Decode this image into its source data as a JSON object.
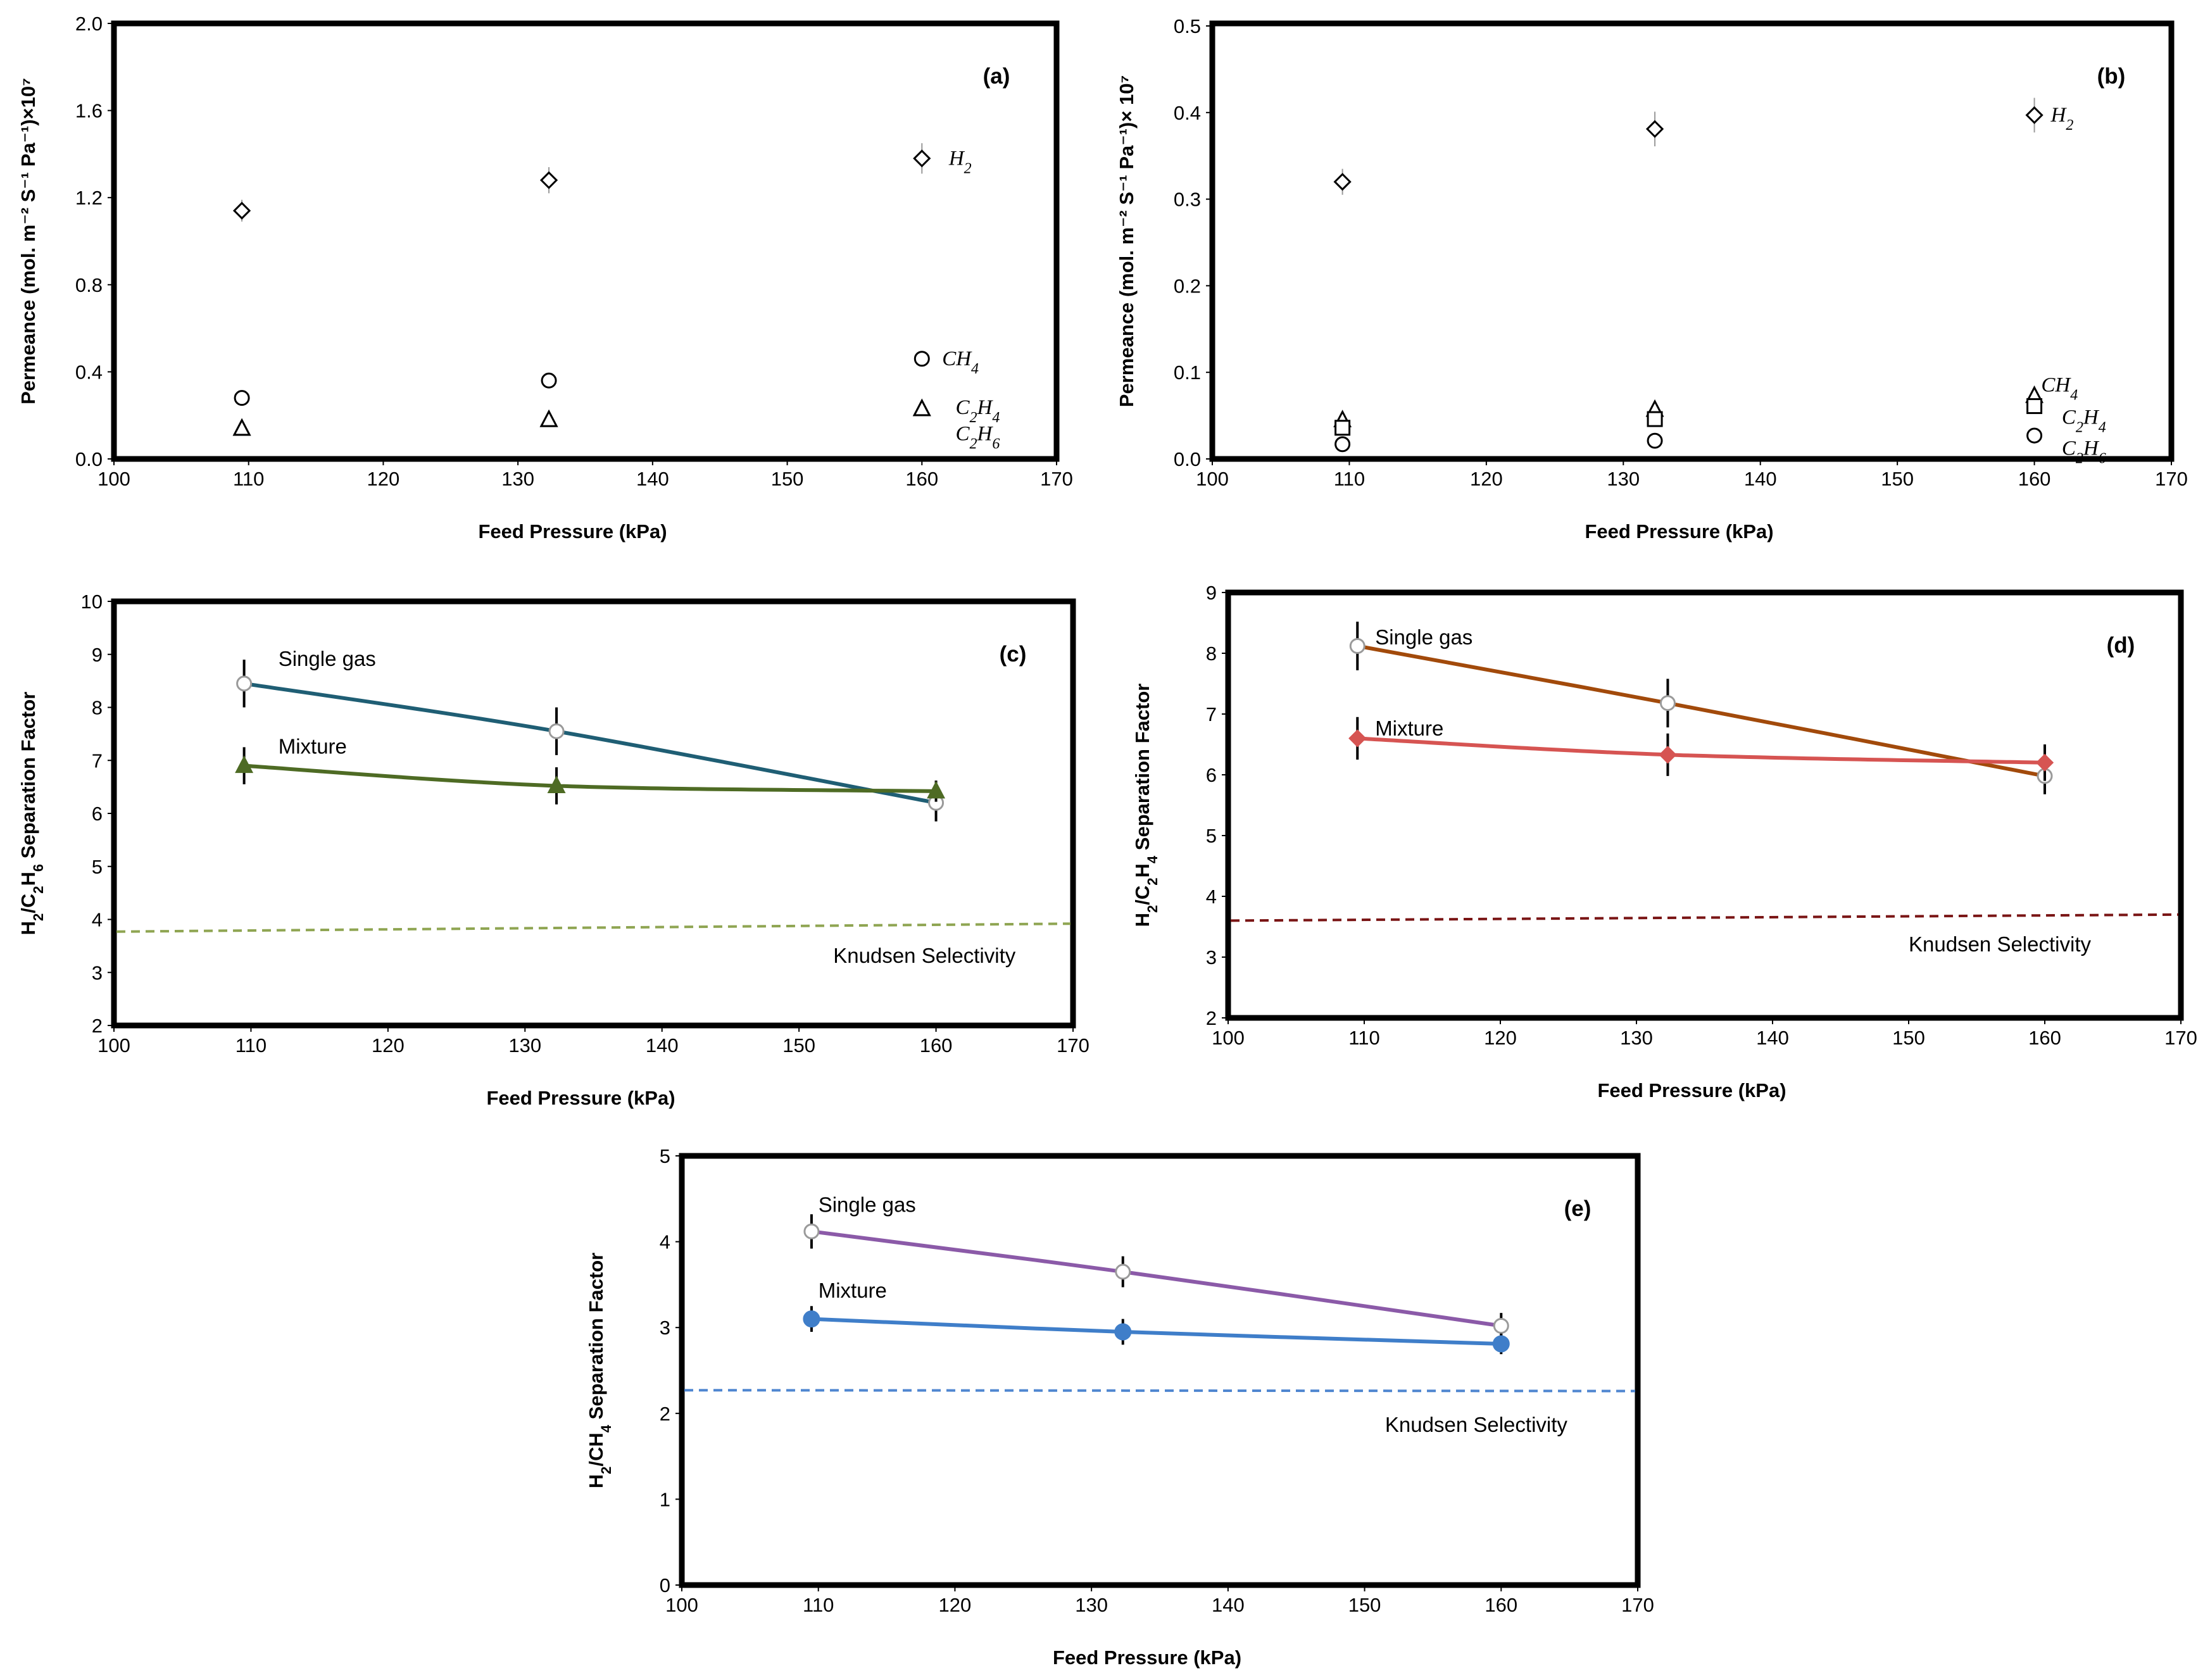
{
  "chart_data": [
    {
      "type": "scatter",
      "panel_label": "(a)",
      "xlabel": "Feed Pressure (kPa)",
      "ylabel": "Permeance (mol. m⁻² S⁻¹ Pa⁻¹)×10⁷",
      "xlim": [
        100,
        170
      ],
      "ylim": [
        0,
        2.0
      ],
      "xticks": [
        100,
        110,
        120,
        130,
        140,
        150,
        160,
        170
      ],
      "yticks": [
        0.0,
        0.4,
        0.8,
        1.2,
        1.6,
        2.0
      ],
      "ytick_labels": [
        "0.0",
        "0.4",
        "0.8",
        "1.2",
        "1.6",
        "2.0"
      ],
      "grid": false,
      "series": [
        {
          "name": "H₂",
          "marker": "diamond-open",
          "x": [
            109.5,
            132.3,
            160
          ],
          "y": [
            1.14,
            1.28,
            1.38
          ],
          "err": [
            0.05,
            0.06,
            0.07
          ]
        },
        {
          "name": "CH₄",
          "marker": "circle-open",
          "x": [
            109.5,
            132.3,
            160
          ],
          "y": [
            0.28,
            0.36,
            0.46
          ],
          "err": [
            0,
            0,
            0
          ]
        },
        {
          "name": "C₂H₄",
          "marker": "triangle-filled",
          "x": [
            109.5,
            132.3,
            160
          ],
          "y": [
            0.14,
            0.18,
            0.23
          ],
          "err": [
            0,
            0,
            0
          ]
        },
        {
          "name": "C₂H₆",
          "marker": "triangle-open",
          "x": [
            109.5,
            132.3,
            160
          ],
          "y": [
            0.14,
            0.18,
            0.23
          ],
          "err": [
            0,
            0,
            0
          ]
        }
      ],
      "annotations": [
        {
          "text": "H₂",
          "x": 162,
          "y": 1.38
        },
        {
          "text": "CH₄",
          "x": 161.5,
          "y": 0.46
        },
        {
          "text": "C₂H₄",
          "x": 162.5,
          "y": 0.235
        },
        {
          "text": "C₂H₆",
          "x": 162.5,
          "y": 0.115
        }
      ]
    },
    {
      "type": "scatter",
      "panel_label": "(b)",
      "xlabel": "Feed Pressure (kPa)",
      "ylabel": "Permeance (mol. m⁻² S⁻¹ Pa⁻¹)× 10⁷",
      "xlim": [
        100,
        170
      ],
      "ylim": [
        0,
        0.5
      ],
      "xticks": [
        100,
        110,
        120,
        130,
        140,
        150,
        160,
        170
      ],
      "yticks": [
        0.0,
        0.1,
        0.2,
        0.3,
        0.4,
        0.5
      ],
      "ytick_labels": [
        "0.0",
        "0.1",
        "0.2",
        "0.3",
        "0.4",
        "0.5"
      ],
      "grid": false,
      "series": [
        {
          "name": "H₂",
          "marker": "diamond-open",
          "x": [
            109.5,
            132.3,
            160
          ],
          "y": [
            0.32,
            0.381,
            0.397
          ],
          "err": [
            0.015,
            0.02,
            0.02
          ]
        },
        {
          "name": "CH₄",
          "marker": "triangle-open",
          "x": [
            109.5,
            132.3,
            160
          ],
          "y": [
            0.045,
            0.057,
            0.073
          ],
          "err": [
            0,
            0,
            0
          ]
        },
        {
          "name": "C₂H₄",
          "marker": "square-open",
          "x": [
            109.5,
            132.3,
            160
          ],
          "y": [
            0.036,
            0.046,
            0.061
          ],
          "err": [
            0,
            0,
            0
          ]
        },
        {
          "name": "C₂H₆",
          "marker": "circle-open",
          "x": [
            109.5,
            132.3,
            160
          ],
          "y": [
            0.017,
            0.021,
            0.027
          ],
          "err": [
            0,
            0,
            0
          ]
        }
      ],
      "annotations": [
        {
          "text": "H₂",
          "x": 161.2,
          "y": 0.397
        },
        {
          "text": "CH₄",
          "x": 160.5,
          "y": 0.085
        },
        {
          "text": "C₂H₄",
          "x": 162,
          "y": 0.048
        },
        {
          "text": "C₂H₆",
          "x": 162,
          "y": 0.012
        }
      ]
    },
    {
      "type": "line",
      "panel_label": "(c)",
      "xlabel": "Feed Pressure (kPa)",
      "ylabel": "H₂/C₂H₆ Separation Factor",
      "xlim": [
        100,
        170
      ],
      "ylim": [
        2,
        10
      ],
      "xticks": [
        100,
        110,
        120,
        130,
        140,
        150,
        160,
        170
      ],
      "yticks": [
        2,
        3,
        4,
        5,
        6,
        7,
        8,
        9,
        10
      ],
      "grid": false,
      "series": [
        {
          "name": "Single gas",
          "color": "#1f5e74",
          "marker": "circle-open",
          "x": [
            109.5,
            132.3,
            160
          ],
          "y": [
            8.45,
            7.55,
            6.2
          ],
          "err": [
            0.45,
            0.45,
            0.35
          ]
        },
        {
          "name": "Mixture",
          "color": "#4e6b24",
          "marker": "triangle-filled",
          "x": [
            109.5,
            132.3,
            160
          ],
          "y": [
            6.9,
            6.52,
            6.42
          ],
          "err": [
            0.35,
            0.35,
            0.2
          ]
        }
      ],
      "knudsen": {
        "label": "Knudsen Selectivity",
        "color": "#8fa552",
        "x": [
          100,
          170
        ],
        "y": [
          3.77,
          3.92
        ]
      },
      "annotations": [
        {
          "text": "Single gas",
          "x": 112,
          "y": 8.9
        },
        {
          "text": "Mixture",
          "x": 112,
          "y": 7.25
        },
        {
          "text": "Knudsen Selectivity",
          "x": 152.5,
          "y": 3.3
        }
      ]
    },
    {
      "type": "line",
      "panel_label": "(d)",
      "xlabel": "Feed Pressure (kPa)",
      "ylabel": "H₂/C₂H₄ Separation Factor",
      "xlim": [
        100,
        170
      ],
      "ylim": [
        2,
        9
      ],
      "xticks": [
        100,
        110,
        120,
        130,
        140,
        150,
        160,
        170
      ],
      "yticks": [
        2,
        3,
        4,
        5,
        6,
        7,
        8,
        9
      ],
      "grid": false,
      "series": [
        {
          "name": "Single gas",
          "color": "#a24a0b",
          "marker": "circle-open",
          "x": [
            109.5,
            132.3,
            160
          ],
          "y": [
            8.12,
            7.18,
            5.98
          ],
          "err": [
            0.4,
            0.4,
            0.3
          ]
        },
        {
          "name": "Mixture",
          "color": "#d65452",
          "marker": "diamond-filled",
          "x": [
            109.5,
            132.3,
            160
          ],
          "y": [
            6.6,
            6.33,
            6.2
          ],
          "err": [
            0.35,
            0.35,
            0.3
          ]
        }
      ],
      "knudsen": {
        "label": "Knudsen Selectivity",
        "color": "#7a1515",
        "x": [
          100,
          170
        ],
        "y": [
          3.6,
          3.7
        ]
      },
      "annotations": [
        {
          "text": "Single gas",
          "x": 110.8,
          "y": 8.25
        },
        {
          "text": "Mixture",
          "x": 110.8,
          "y": 6.75
        },
        {
          "text": "Knudsen Selectivity",
          "x": 150,
          "y": 3.2
        }
      ]
    },
    {
      "type": "line",
      "panel_label": "(e)",
      "xlabel": "Feed Pressure (kPa)",
      "ylabel": "H₂/CH₄ Separation Factor",
      "xlim": [
        100,
        170
      ],
      "ylim": [
        0,
        5
      ],
      "xticks": [
        100,
        110,
        120,
        130,
        140,
        150,
        160,
        170
      ],
      "yticks": [
        0,
        1,
        2,
        3,
        4,
        5
      ],
      "grid": false,
      "series": [
        {
          "name": "Single gas",
          "color": "#8b5aa8",
          "marker": "circle-open",
          "x": [
            109.5,
            132.3,
            160
          ],
          "y": [
            4.12,
            3.65,
            3.02
          ],
          "err": [
            0.2,
            0.18,
            0.15
          ]
        },
        {
          "name": "Mixture",
          "color": "#3f7ec9",
          "marker": "circle-filled",
          "x": [
            109.5,
            132.3,
            160
          ],
          "y": [
            3.1,
            2.95,
            2.81
          ],
          "err": [
            0.15,
            0.15,
            0.12
          ]
        }
      ],
      "knudsen": {
        "label": "Knudsen Selectivity",
        "color": "#4f86d0",
        "x": [
          100,
          170
        ],
        "y": [
          2.27,
          2.26
        ]
      },
      "annotations": [
        {
          "text": "Single gas",
          "x": 110,
          "y": 4.42
        },
        {
          "text": "Mixture",
          "x": 110,
          "y": 3.42
        },
        {
          "text": "Knudsen Selectivity",
          "x": 151.5,
          "y": 1.86
        }
      ]
    }
  ]
}
